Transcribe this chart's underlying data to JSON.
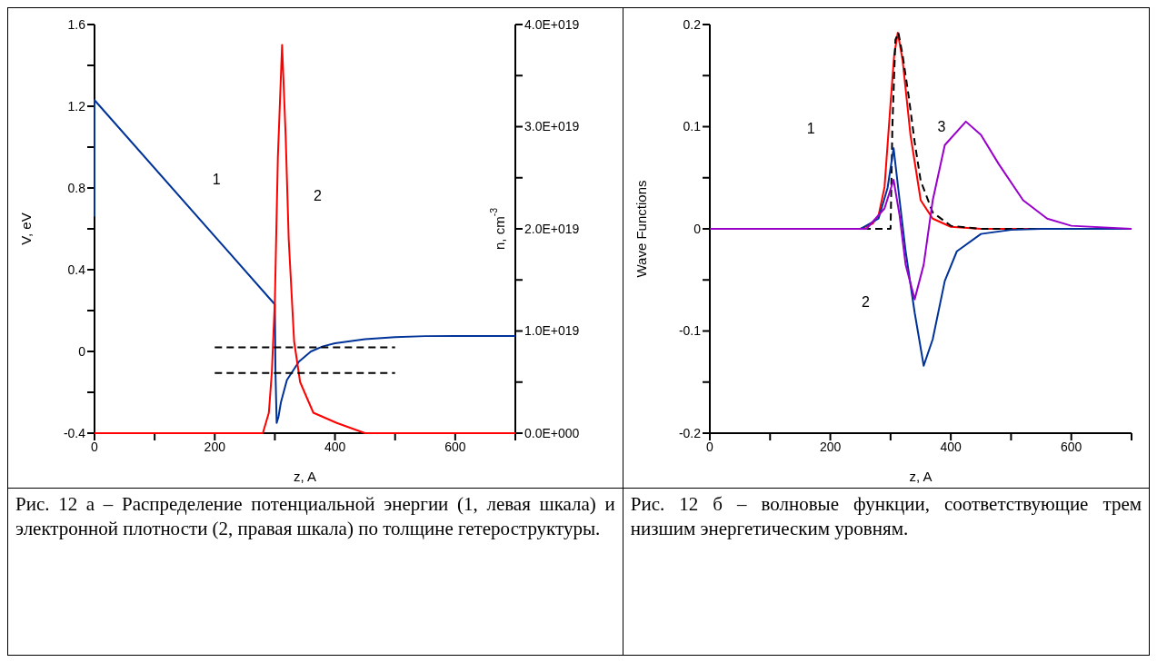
{
  "chart_data": [
    {
      "type": "line",
      "xlabel": "z, A",
      "ylabel": "V, eV",
      "y2label": "n, cm$^{-3}$",
      "xlim": [
        0,
        700
      ],
      "xticks": [
        0,
        {
          "value": 100,
          "label": null
        },
        200,
        {
          "value": 300,
          "label": null
        },
        400,
        {
          "value": 500,
          "label": null
        },
        600,
        {
          "value": 700,
          "label": null
        }
      ],
      "ylim": [
        -0.4,
        1.6
      ],
      "yticks": [
        -0.4,
        {
          "value": -0.2,
          "label": null
        },
        0,
        {
          "value": 0.2,
          "label": null
        },
        0.4,
        {
          "value": 0.6,
          "label": null
        },
        0.8,
        {
          "value": 1.0,
          "label": null
        },
        1.2,
        {
          "value": 1.4,
          "label": null
        },
        1.6
      ],
      "y2lim": [
        0,
        4e+19
      ],
      "y2ticks": [
        {
          "value": 0,
          "label": "0.0E+000"
        },
        {
          "value": 5e+18,
          "label": null
        },
        {
          "value": 1e+19,
          "label": "1.0E+019"
        },
        {
          "value": 1.5e+19,
          "label": null
        },
        {
          "value": 2e+19,
          "label": "2.0E+019"
        },
        {
          "value": 2.5e+19,
          "label": null
        },
        {
          "value": 3e+19,
          "label": "3.0E+019"
        },
        {
          "value": 3.5e+19,
          "label": null
        },
        {
          "value": 4e+19,
          "label": "4.0E+019"
        }
      ],
      "grid": false,
      "legend": false,
      "marker": "none",
      "series": [
        {
          "color": "#003399",
          "line_style": "solid",
          "x": [
            0,
            0,
            300,
            301,
            303,
            306,
            310,
            320,
            340,
            360,
            380,
            400,
            450,
            500,
            550,
            600,
            700
          ],
          "values": [
            0.66,
            1.23,
            0.23,
            -0.1,
            -0.35,
            -0.32,
            -0.25,
            -0.14,
            -0.05,
            0.0,
            0.025,
            0.04,
            0.06,
            0.07,
            0.075,
            0.076,
            0.076
          ]
        },
        {
          "color": "#ff0000",
          "line_style": "solid",
          "axis": "y2",
          "x": [
            0,
            270,
            280,
            290,
            295,
            300,
            305,
            312,
            318,
            323,
            332,
            342,
            364,
            403,
            450,
            500,
            600,
            700
          ],
          "values": [
            0,
            0,
            0,
            2e+18,
            6e+18,
            1.3e+19,
            2.7e+19,
            3.8e+19,
            2.9e+19,
            1.9e+19,
            9e+18,
            5e+18,
            2e+18,
            1e+18,
            0,
            0,
            0,
            0
          ]
        },
        {
          "color": "#000000",
          "line_style": "dashed",
          "x": [
            200,
            500
          ],
          "values": [
            0.02,
            0.02
          ]
        },
        {
          "color": "#000000",
          "line_style": "dashed",
          "x": [
            200,
            500
          ],
          "values": [
            -0.105,
            -0.105
          ]
        }
      ],
      "annotations": [
        "1",
        "2",
        "Рис. 12 а – Распределение потенциальной энергии (1, левая шкала) и электронной плотности (2, правая шкала) по толщине гетероструктуры."
      ]
    },
    {
      "type": "line",
      "xlabel": "z, A",
      "ylabel": "Wave Functions",
      "xlim": [
        0,
        700
      ],
      "xticks": [
        0,
        {
          "value": 100,
          "label": null
        },
        200,
        {
          "value": 300,
          "label": null
        },
        400,
        {
          "value": 500,
          "label": null
        },
        600,
        {
          "value": 700,
          "label": null
        }
      ],
      "ylim": [
        -0.2,
        0.2
      ],
      "yticks": [
        -0.2,
        {
          "value": -0.15,
          "label": null
        },
        -0.1,
        {
          "value": -0.05,
          "label": null
        },
        0,
        {
          "value": 0.05,
          "label": null
        },
        0.1,
        {
          "value": 0.15,
          "label": null
        },
        0.2
      ],
      "grid": false,
      "legend": false,
      "marker": "none",
      "series": [
        {
          "color": "#ff0000",
          "line_style": "solid",
          "x": [
            0,
            250,
            270,
            280,
            290,
            300,
            306,
            312,
            320,
            333,
            350,
            370,
            400,
            450,
            700
          ],
          "values": [
            0,
            0,
            0.005,
            0.013,
            0.041,
            0.123,
            0.17,
            0.192,
            0.165,
            0.092,
            0.028,
            0.01,
            0.002,
            0,
            0
          ]
        },
        {
          "color": "#000000",
          "line_style": "dashed",
          "x": [
            0,
            300,
            303,
            308,
            313,
            320,
            330,
            340,
            350,
            370,
            400,
            450,
            700
          ],
          "values": [
            0,
            0,
            0.1,
            0.185,
            0.192,
            0.17,
            0.13,
            0.085,
            0.047,
            0.016,
            0.003,
            0,
            0
          ]
        },
        {
          "color": "#003399",
          "line_style": "solid",
          "x": [
            0,
            250,
            280,
            295,
            305,
            315,
            325,
            340,
            355,
            370,
            390,
            410,
            450,
            500,
            550,
            700
          ],
          "values": [
            0,
            0,
            0.01,
            0.04,
            0.079,
            0.028,
            -0.022,
            -0.082,
            -0.134,
            -0.108,
            -0.051,
            -0.022,
            -0.005,
            -0.001,
            0,
            0
          ]
        },
        {
          "color": "#9900cc",
          "line_style": "solid",
          "x": [
            0,
            260,
            290,
            305,
            315,
            325,
            340,
            355,
            370,
            390,
            425,
            450,
            480,
            520,
            560,
            600,
            700
          ],
          "values": [
            0,
            0,
            0.02,
            0.048,
            0.013,
            -0.035,
            -0.069,
            -0.035,
            0.028,
            0.082,
            0.105,
            0.092,
            0.063,
            0.028,
            0.01,
            0.003,
            0
          ]
        }
      ],
      "annotations": [
        "1",
        "2",
        "3",
        "Рис. 12 б – волновые функции, соответствующие трем низшим энергетическим уровням."
      ]
    }
  ]
}
